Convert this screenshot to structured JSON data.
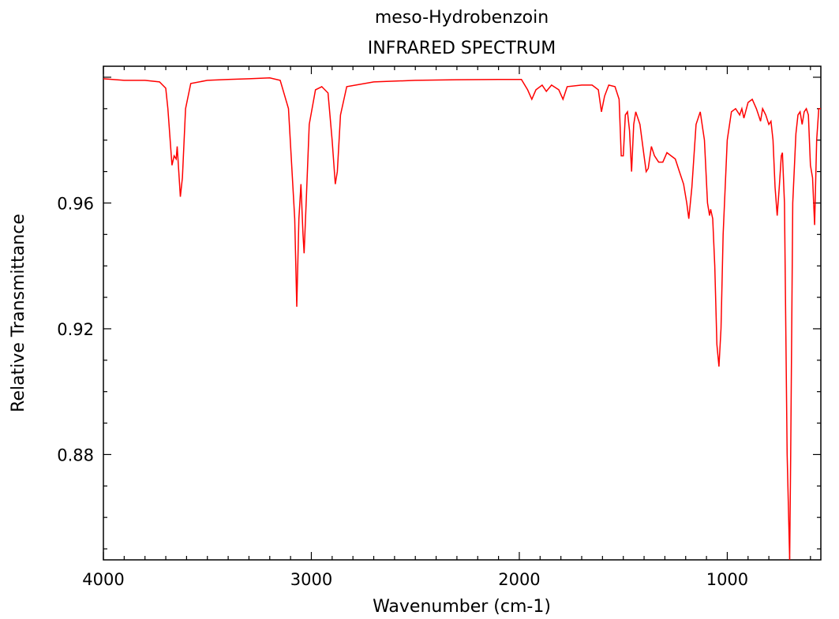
{
  "chart_data": {
    "type": "line",
    "title": "meso-Hydrobenzoin",
    "subtitle": "INFRARED SPECTRUM",
    "xlabel": "Wavenumber (cm-1)",
    "ylabel": "Relative Transmittance",
    "xlim": [
      4000,
      550
    ],
    "ylim": [
      0.8465,
      1.0035
    ],
    "x_reversed": true,
    "x_ticks": [
      {
        "value": 4000,
        "label": "4000"
      },
      {
        "value": 3000,
        "label": "3000"
      },
      {
        "value": 2000,
        "label": "2000"
      },
      {
        "value": 1000,
        "label": "1000"
      }
    ],
    "y_ticks": [
      {
        "value": 0.96,
        "label": "0.96"
      },
      {
        "value": 0.92,
        "label": "0.92"
      },
      {
        "value": 0.88,
        "label": "0.88"
      }
    ],
    "grid": false,
    "line_color": "#ff0000",
    "series": [
      {
        "points": [
          [
            4000,
            0.9995
          ],
          [
            3900,
            0.999
          ],
          [
            3800,
            0.999
          ],
          [
            3730,
            0.9985
          ],
          [
            3700,
            0.9965
          ],
          [
            3690,
            0.99
          ],
          [
            3670,
            0.972
          ],
          [
            3660,
            0.975
          ],
          [
            3650,
            0.974
          ],
          [
            3645,
            0.978
          ],
          [
            3630,
            0.962
          ],
          [
            3620,
            0.968
          ],
          [
            3605,
            0.99
          ],
          [
            3580,
            0.998
          ],
          [
            3500,
            0.999
          ],
          [
            3400,
            0.9993
          ],
          [
            3300,
            0.9995
          ],
          [
            3200,
            0.9998
          ],
          [
            3150,
            0.999
          ],
          [
            3110,
            0.99
          ],
          [
            3080,
            0.955
          ],
          [
            3070,
            0.927
          ],
          [
            3060,
            0.955
          ],
          [
            3050,
            0.966
          ],
          [
            3040,
            0.95
          ],
          [
            3035,
            0.944
          ],
          [
            3025,
            0.96
          ],
          [
            3010,
            0.985
          ],
          [
            2980,
            0.996
          ],
          [
            2950,
            0.997
          ],
          [
            2920,
            0.995
          ],
          [
            2900,
            0.98
          ],
          [
            2885,
            0.966
          ],
          [
            2875,
            0.97
          ],
          [
            2860,
            0.988
          ],
          [
            2830,
            0.997
          ],
          [
            2700,
            0.9985
          ],
          [
            2500,
            0.999
          ],
          [
            2300,
            0.9992
          ],
          [
            2100,
            0.9993
          ],
          [
            1990,
            0.9993
          ],
          [
            1960,
            0.996
          ],
          [
            1940,
            0.993
          ],
          [
            1920,
            0.996
          ],
          [
            1890,
            0.9975
          ],
          [
            1870,
            0.9955
          ],
          [
            1845,
            0.9975
          ],
          [
            1810,
            0.996
          ],
          [
            1790,
            0.993
          ],
          [
            1770,
            0.997
          ],
          [
            1700,
            0.9975
          ],
          [
            1650,
            0.9975
          ],
          [
            1620,
            0.996
          ],
          [
            1605,
            0.989
          ],
          [
            1590,
            0.994
          ],
          [
            1570,
            0.9975
          ],
          [
            1540,
            0.997
          ],
          [
            1520,
            0.993
          ],
          [
            1510,
            0.975
          ],
          [
            1500,
            0.975
          ],
          [
            1490,
            0.988
          ],
          [
            1480,
            0.989
          ],
          [
            1470,
            0.983
          ],
          [
            1460,
            0.97
          ],
          [
            1450,
            0.985
          ],
          [
            1440,
            0.989
          ],
          [
            1420,
            0.985
          ],
          [
            1400,
            0.975
          ],
          [
            1390,
            0.97
          ],
          [
            1380,
            0.971
          ],
          [
            1365,
            0.978
          ],
          [
            1350,
            0.975
          ],
          [
            1330,
            0.973
          ],
          [
            1310,
            0.973
          ],
          [
            1290,
            0.976
          ],
          [
            1270,
            0.975
          ],
          [
            1250,
            0.974
          ],
          [
            1230,
            0.97
          ],
          [
            1210,
            0.966
          ],
          [
            1195,
            0.96
          ],
          [
            1185,
            0.955
          ],
          [
            1170,
            0.965
          ],
          [
            1150,
            0.985
          ],
          [
            1130,
            0.989
          ],
          [
            1110,
            0.98
          ],
          [
            1095,
            0.96
          ],
          [
            1085,
            0.956
          ],
          [
            1080,
            0.958
          ],
          [
            1070,
            0.955
          ],
          [
            1060,
            0.94
          ],
          [
            1050,
            0.915
          ],
          [
            1040,
            0.908
          ],
          [
            1030,
            0.92
          ],
          [
            1020,
            0.95
          ],
          [
            1000,
            0.98
          ],
          [
            980,
            0.989
          ],
          [
            960,
            0.99
          ],
          [
            940,
            0.988
          ],
          [
            930,
            0.99
          ],
          [
            920,
            0.987
          ],
          [
            900,
            0.992
          ],
          [
            880,
            0.993
          ],
          [
            860,
            0.99
          ],
          [
            850,
            0.988
          ],
          [
            840,
            0.986
          ],
          [
            830,
            0.99
          ],
          [
            815,
            0.988
          ],
          [
            800,
            0.985
          ],
          [
            790,
            0.986
          ],
          [
            780,
            0.98
          ],
          [
            770,
            0.965
          ],
          [
            760,
            0.956
          ],
          [
            750,
            0.965
          ],
          [
            740,
            0.975
          ],
          [
            735,
            0.976
          ],
          [
            725,
            0.96
          ],
          [
            712,
            0.88
          ],
          [
            700,
            0.8465
          ],
          [
            695,
            0.88
          ],
          [
            685,
            0.96
          ],
          [
            670,
            0.982
          ],
          [
            660,
            0.988
          ],
          [
            650,
            0.989
          ],
          [
            640,
            0.985
          ],
          [
            630,
            0.989
          ],
          [
            620,
            0.99
          ],
          [
            610,
            0.988
          ],
          [
            600,
            0.972
          ],
          [
            590,
            0.968
          ],
          [
            580,
            0.953
          ],
          [
            570,
            0.98
          ],
          [
            560,
            0.99
          ],
          [
            550,
            0.99
          ]
        ]
      }
    ]
  }
}
